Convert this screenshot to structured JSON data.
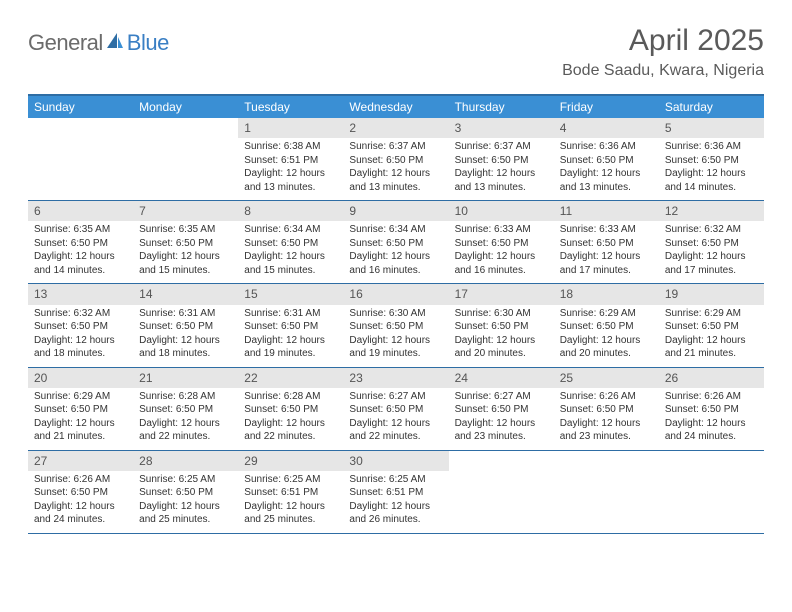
{
  "brand": {
    "text1": "General",
    "text2": "Blue"
  },
  "title": "April 2025",
  "subtitle": "Bode Saadu, Kwara, Nigeria",
  "colors": {
    "header_bar": "#3a8fd4",
    "header_border": "#2e6da4",
    "day_band": "#e6e6e6",
    "text": "#333333",
    "logo_gray": "#6b6b6b",
    "logo_blue": "#3a7fc4"
  },
  "daysOfWeek": [
    "Sunday",
    "Monday",
    "Tuesday",
    "Wednesday",
    "Thursday",
    "Friday",
    "Saturday"
  ],
  "weeks": [
    [
      {
        "empty": true
      },
      {
        "empty": true
      },
      {
        "num": "1",
        "sunrise": "Sunrise: 6:38 AM",
        "sunset": "Sunset: 6:51 PM",
        "daylight": "Daylight: 12 hours and 13 minutes."
      },
      {
        "num": "2",
        "sunrise": "Sunrise: 6:37 AM",
        "sunset": "Sunset: 6:50 PM",
        "daylight": "Daylight: 12 hours and 13 minutes."
      },
      {
        "num": "3",
        "sunrise": "Sunrise: 6:37 AM",
        "sunset": "Sunset: 6:50 PM",
        "daylight": "Daylight: 12 hours and 13 minutes."
      },
      {
        "num": "4",
        "sunrise": "Sunrise: 6:36 AM",
        "sunset": "Sunset: 6:50 PM",
        "daylight": "Daylight: 12 hours and 13 minutes."
      },
      {
        "num": "5",
        "sunrise": "Sunrise: 6:36 AM",
        "sunset": "Sunset: 6:50 PM",
        "daylight": "Daylight: 12 hours and 14 minutes."
      }
    ],
    [
      {
        "num": "6",
        "sunrise": "Sunrise: 6:35 AM",
        "sunset": "Sunset: 6:50 PM",
        "daylight": "Daylight: 12 hours and 14 minutes."
      },
      {
        "num": "7",
        "sunrise": "Sunrise: 6:35 AM",
        "sunset": "Sunset: 6:50 PM",
        "daylight": "Daylight: 12 hours and 15 minutes."
      },
      {
        "num": "8",
        "sunrise": "Sunrise: 6:34 AM",
        "sunset": "Sunset: 6:50 PM",
        "daylight": "Daylight: 12 hours and 15 minutes."
      },
      {
        "num": "9",
        "sunrise": "Sunrise: 6:34 AM",
        "sunset": "Sunset: 6:50 PM",
        "daylight": "Daylight: 12 hours and 16 minutes."
      },
      {
        "num": "10",
        "sunrise": "Sunrise: 6:33 AM",
        "sunset": "Sunset: 6:50 PM",
        "daylight": "Daylight: 12 hours and 16 minutes."
      },
      {
        "num": "11",
        "sunrise": "Sunrise: 6:33 AM",
        "sunset": "Sunset: 6:50 PM",
        "daylight": "Daylight: 12 hours and 17 minutes."
      },
      {
        "num": "12",
        "sunrise": "Sunrise: 6:32 AM",
        "sunset": "Sunset: 6:50 PM",
        "daylight": "Daylight: 12 hours and 17 minutes."
      }
    ],
    [
      {
        "num": "13",
        "sunrise": "Sunrise: 6:32 AM",
        "sunset": "Sunset: 6:50 PM",
        "daylight": "Daylight: 12 hours and 18 minutes."
      },
      {
        "num": "14",
        "sunrise": "Sunrise: 6:31 AM",
        "sunset": "Sunset: 6:50 PM",
        "daylight": "Daylight: 12 hours and 18 minutes."
      },
      {
        "num": "15",
        "sunrise": "Sunrise: 6:31 AM",
        "sunset": "Sunset: 6:50 PM",
        "daylight": "Daylight: 12 hours and 19 minutes."
      },
      {
        "num": "16",
        "sunrise": "Sunrise: 6:30 AM",
        "sunset": "Sunset: 6:50 PM",
        "daylight": "Daylight: 12 hours and 19 minutes."
      },
      {
        "num": "17",
        "sunrise": "Sunrise: 6:30 AM",
        "sunset": "Sunset: 6:50 PM",
        "daylight": "Daylight: 12 hours and 20 minutes."
      },
      {
        "num": "18",
        "sunrise": "Sunrise: 6:29 AM",
        "sunset": "Sunset: 6:50 PM",
        "daylight": "Daylight: 12 hours and 20 minutes."
      },
      {
        "num": "19",
        "sunrise": "Sunrise: 6:29 AM",
        "sunset": "Sunset: 6:50 PM",
        "daylight": "Daylight: 12 hours and 21 minutes."
      }
    ],
    [
      {
        "num": "20",
        "sunrise": "Sunrise: 6:29 AM",
        "sunset": "Sunset: 6:50 PM",
        "daylight": "Daylight: 12 hours and 21 minutes."
      },
      {
        "num": "21",
        "sunrise": "Sunrise: 6:28 AM",
        "sunset": "Sunset: 6:50 PM",
        "daylight": "Daylight: 12 hours and 22 minutes."
      },
      {
        "num": "22",
        "sunrise": "Sunrise: 6:28 AM",
        "sunset": "Sunset: 6:50 PM",
        "daylight": "Daylight: 12 hours and 22 minutes."
      },
      {
        "num": "23",
        "sunrise": "Sunrise: 6:27 AM",
        "sunset": "Sunset: 6:50 PM",
        "daylight": "Daylight: 12 hours and 22 minutes."
      },
      {
        "num": "24",
        "sunrise": "Sunrise: 6:27 AM",
        "sunset": "Sunset: 6:50 PM",
        "daylight": "Daylight: 12 hours and 23 minutes."
      },
      {
        "num": "25",
        "sunrise": "Sunrise: 6:26 AM",
        "sunset": "Sunset: 6:50 PM",
        "daylight": "Daylight: 12 hours and 23 minutes."
      },
      {
        "num": "26",
        "sunrise": "Sunrise: 6:26 AM",
        "sunset": "Sunset: 6:50 PM",
        "daylight": "Daylight: 12 hours and 24 minutes."
      }
    ],
    [
      {
        "num": "27",
        "sunrise": "Sunrise: 6:26 AM",
        "sunset": "Sunset: 6:50 PM",
        "daylight": "Daylight: 12 hours and 24 minutes."
      },
      {
        "num": "28",
        "sunrise": "Sunrise: 6:25 AM",
        "sunset": "Sunset: 6:50 PM",
        "daylight": "Daylight: 12 hours and 25 minutes."
      },
      {
        "num": "29",
        "sunrise": "Sunrise: 6:25 AM",
        "sunset": "Sunset: 6:51 PM",
        "daylight": "Daylight: 12 hours and 25 minutes."
      },
      {
        "num": "30",
        "sunrise": "Sunrise: 6:25 AM",
        "sunset": "Sunset: 6:51 PM",
        "daylight": "Daylight: 12 hours and 26 minutes."
      },
      {
        "empty": true
      },
      {
        "empty": true
      },
      {
        "empty": true
      }
    ]
  ]
}
